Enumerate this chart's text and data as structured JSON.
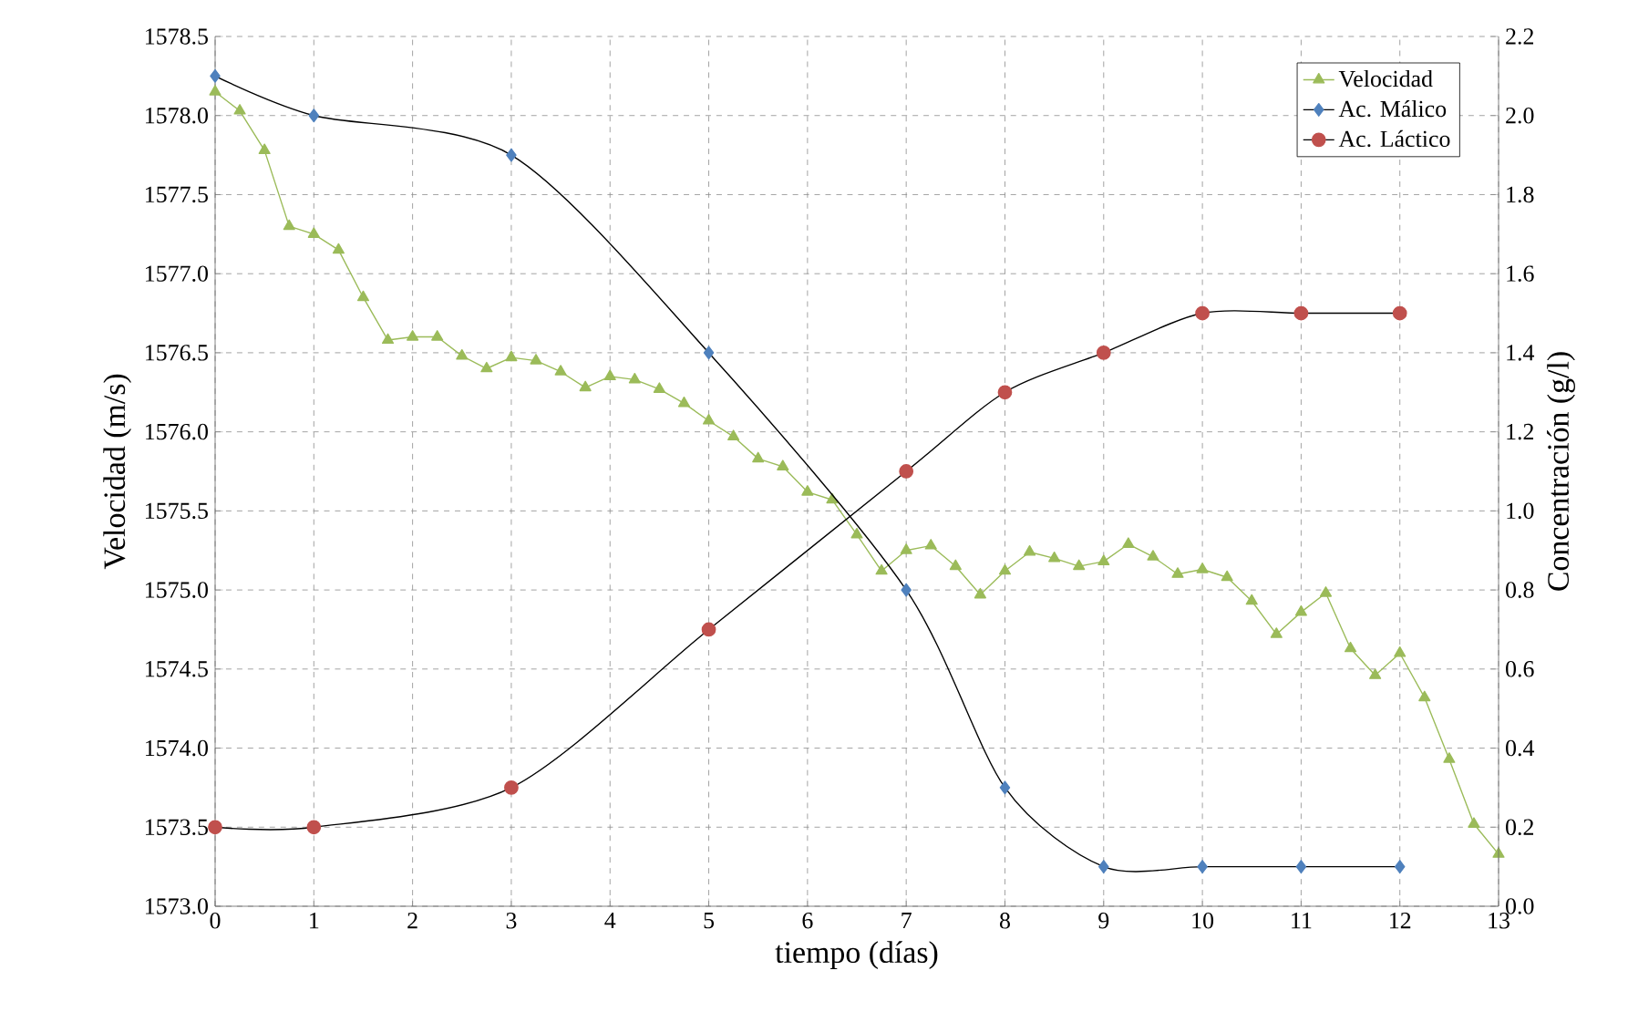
{
  "chart_data": {
    "type": "line",
    "xlabel": "tiempo (días)",
    "ylabel": "Velocidad (m/s)",
    "y2label": "Concentración (g/l)",
    "xlim": [
      0,
      13
    ],
    "xticks": [
      0,
      1,
      2,
      3,
      4,
      5,
      6,
      7,
      8,
      9,
      10,
      11,
      12,
      13
    ],
    "ylim": [
      1573.0,
      1578.5
    ],
    "yticks": [
      {
        "value": 1573.0,
        "label": "1573.0"
      },
      {
        "value": 1573.5,
        "label": "1573.5"
      },
      {
        "value": 1574.0,
        "label": "1574.0"
      },
      {
        "value": 1574.5,
        "label": "1574.5"
      },
      {
        "value": 1575.0,
        "label": "1575.0"
      },
      {
        "value": 1575.5,
        "label": "1575.5"
      },
      {
        "value": 1576.0,
        "label": "1576.0"
      },
      {
        "value": 1576.5,
        "label": "1576.5"
      },
      {
        "value": 1577.0,
        "label": "1577.0"
      },
      {
        "value": 1577.5,
        "label": "1577.5"
      },
      {
        "value": 1578.0,
        "label": "1578.0"
      },
      {
        "value": 1578.5,
        "label": "1578.5"
      }
    ],
    "y2lim": [
      0.0,
      2.2
    ],
    "y2ticks": [
      {
        "value": 0.0,
        "label": "0.0"
      },
      {
        "value": 0.2,
        "label": "0.2"
      },
      {
        "value": 0.4,
        "label": "0.4"
      },
      {
        "value": 0.6,
        "label": "0.6"
      },
      {
        "value": 0.8,
        "label": "0.8"
      },
      {
        "value": 1.0,
        "label": "1.0"
      },
      {
        "value": 1.2,
        "label": "1.2"
      },
      {
        "value": 1.4,
        "label": "1.4"
      },
      {
        "value": 1.6,
        "label": "1.6"
      },
      {
        "value": 1.8,
        "label": "1.8"
      },
      {
        "value": 2.0,
        "label": "2.0"
      },
      {
        "value": 2.2,
        "label": "2.2"
      }
    ],
    "grid": true,
    "legend": "top right",
    "series": [
      {
        "name": "Velocidad",
        "color": "#9bbb59",
        "marker": "triangle",
        "x": [
          0,
          0.25,
          0.5,
          0.75,
          1,
          1.25,
          1.5,
          1.75,
          2,
          2.25,
          2.5,
          2.75,
          3,
          3.25,
          3.5,
          3.75,
          4,
          4.25,
          4.5,
          4.75,
          5,
          5.25,
          5.5,
          5.75,
          6,
          6.25,
          6.5,
          6.75,
          7,
          7.25,
          7.5,
          7.75,
          8,
          8.25,
          8.5,
          8.75,
          9,
          9.25,
          9.5,
          9.75,
          10,
          10.25,
          10.5,
          10.75,
          11,
          11.25,
          11.5,
          11.75,
          12,
          12.25,
          12.5,
          12.75,
          13
        ],
        "values": [
          1578.15,
          1578.03,
          1577.78,
          1577.3,
          1577.25,
          1577.15,
          1576.85,
          1576.58,
          1576.6,
          1576.6,
          1576.48,
          1576.4,
          1576.47,
          1576.45,
          1576.38,
          1576.28,
          1576.35,
          1576.33,
          1576.27,
          1576.18,
          1576.07,
          1575.97,
          1575.83,
          1575.78,
          1575.62,
          1575.57,
          1575.35,
          1575.12,
          1575.25,
          1575.28,
          1575.15,
          1574.97,
          1575.12,
          1575.24,
          1575.2,
          1575.15,
          1575.18,
          1575.29,
          1575.21,
          1575.1,
          1575.13,
          1575.08,
          1574.93,
          1574.72,
          1574.86,
          1574.98,
          1574.63,
          1574.46,
          1574.6,
          1574.32,
          1573.93,
          1573.52,
          1573.33
        ]
      },
      {
        "name": "Ac. Málico",
        "color": "#4f81bd",
        "marker": "diamond",
        "axis": "y2",
        "x": [
          0,
          1,
          3,
          5,
          7,
          8,
          9,
          10,
          11,
          12
        ],
        "values": [
          2.1,
          2.0,
          1.9,
          1.4,
          0.8,
          0.3,
          0.1,
          0.1,
          0.1,
          0.1
        ]
      },
      {
        "name": "Ac. Láctico",
        "color": "#c0504d",
        "marker": "circle",
        "axis": "y2",
        "x": [
          0,
          1,
          3,
          5,
          7,
          8,
          9,
          10,
          11,
          12
        ],
        "values": [
          0.2,
          0.2,
          0.3,
          0.7,
          1.1,
          1.3,
          1.4,
          1.5,
          1.5,
          1.5
        ]
      }
    ]
  }
}
